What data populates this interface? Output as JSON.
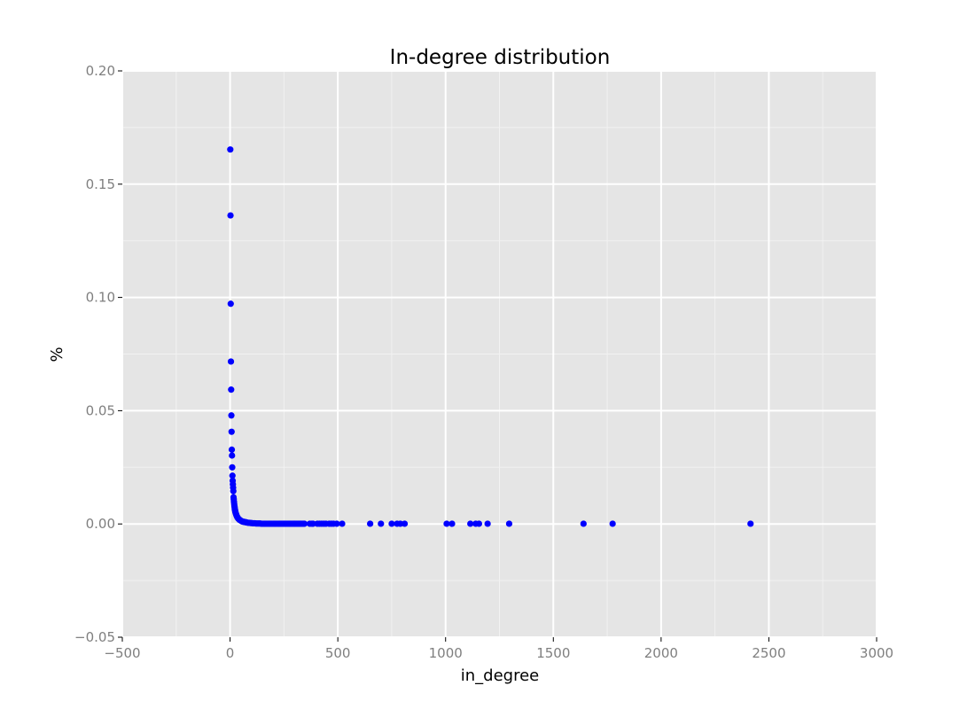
{
  "chart_data": {
    "type": "scatter",
    "title": "In-degree distribution",
    "xlabel": "in_degree",
    "ylabel": "%",
    "xlim": [
      -500,
      3000
    ],
    "ylim": [
      -0.05,
      0.2
    ],
    "x_ticks": [
      -500,
      0,
      500,
      1000,
      1500,
      2000,
      2500,
      3000
    ],
    "x_tick_labels": [
      "−500",
      "0",
      "500",
      "1000",
      "1500",
      "2000",
      "2500",
      "3000"
    ],
    "y_ticks": [
      -0.05,
      0.0,
      0.05,
      0.1,
      0.15,
      0.2
    ],
    "y_tick_labels": [
      "−0.05",
      "0.00",
      "0.05",
      "0.10",
      "0.15",
      "0.20"
    ],
    "grid": true,
    "colors": {
      "panel_background": "#e5e5e5",
      "grid_major": "#ffffff",
      "grid_minor": "#f2f2f2",
      "point": "#0000ff",
      "tick": "#7f7f7f"
    },
    "series": [
      {
        "name": "in_degree",
        "points": [
          [
            1,
            0.1653
          ],
          [
            2,
            0.1362
          ],
          [
            3,
            0.0972
          ],
          [
            4,
            0.0717
          ],
          [
            5,
            0.0593
          ],
          [
            6,
            0.0479
          ],
          [
            7,
            0.0407
          ],
          [
            8,
            0.0328
          ],
          [
            9,
            0.0302
          ],
          [
            10,
            0.025
          ],
          [
            11,
            0.0213
          ],
          [
            12,
            0.0191
          ],
          [
            13,
            0.0175
          ],
          [
            14,
            0.016
          ],
          [
            15,
            0.0145
          ],
          [
            16,
            0.0118
          ],
          [
            17,
            0.0109
          ],
          [
            18,
            0.0098
          ],
          [
            19,
            0.0089
          ],
          [
            20,
            0.0081
          ],
          [
            21,
            0.0074
          ],
          [
            22,
            0.0067
          ],
          [
            23,
            0.0061
          ],
          [
            24,
            0.0056
          ],
          [
            25,
            0.0051
          ],
          [
            27,
            0.0045
          ],
          [
            29,
            0.004
          ],
          [
            31,
            0.0035
          ],
          [
            33,
            0.0031
          ],
          [
            35,
            0.0028
          ],
          [
            38,
            0.0024
          ],
          [
            41,
            0.0021
          ],
          [
            44,
            0.0018
          ],
          [
            48,
            0.0016
          ],
          [
            52,
            0.0013
          ],
          [
            56,
            0.0011
          ],
          [
            60,
            0.001
          ],
          [
            65,
            0.0009
          ],
          [
            70,
            0.0008
          ],
          [
            75,
            0.0007
          ],
          [
            80,
            0.0006
          ],
          [
            85,
            0.0005
          ],
          [
            90,
            0.0005
          ],
          [
            95,
            0.0004
          ],
          [
            100,
            0.0004
          ],
          [
            105,
            0.0003
          ],
          [
            110,
            0.0003
          ],
          [
            115,
            0.0003
          ],
          [
            120,
            0.0002
          ],
          [
            125,
            0.0002
          ],
          [
            130,
            0.0002
          ],
          [
            135,
            0.0002
          ],
          [
            140,
            0.0002
          ],
          [
            145,
            0.0001
          ],
          [
            150,
            0.0001
          ],
          [
            155,
            0.0001
          ],
          [
            160,
            0.0001
          ],
          [
            165,
            0.0001
          ],
          [
            170,
            0.0001
          ],
          [
            175,
            0.0001
          ],
          [
            180,
            0.0001
          ],
          [
            185,
            0.0001
          ],
          [
            190,
            0.0001
          ],
          [
            195,
            0.0001
          ],
          [
            200,
            0.0001
          ],
          [
            205,
            0.0001
          ],
          [
            210,
            0.0001
          ],
          [
            215,
            0.0001
          ],
          [
            220,
            0.0001
          ],
          [
            225,
            0.0001
          ],
          [
            230,
            0.0001
          ],
          [
            235,
            0.0001
          ],
          [
            240,
            0.0001
          ],
          [
            245,
            0.0001
          ],
          [
            250,
            0.0001
          ],
          [
            255,
            0.0001
          ],
          [
            260,
            0.0001
          ],
          [
            265,
            0.0001
          ],
          [
            270,
            0.0001
          ],
          [
            275,
            0.0001
          ],
          [
            280,
            0.0001
          ],
          [
            285,
            0.0001
          ],
          [
            290,
            0.0001
          ],
          [
            295,
            0.0001
          ],
          [
            300,
            0.0001
          ],
          [
            305,
            0.0001
          ],
          [
            310,
            0.0001
          ],
          [
            315,
            0.0001
          ],
          [
            320,
            0.0001
          ],
          [
            325,
            0.0001
          ],
          [
            330,
            0.0001
          ],
          [
            335,
            0.0001
          ],
          [
            340,
            0.0001
          ],
          [
            345,
            0.0001
          ],
          [
            370,
            0.0001
          ],
          [
            380,
            0.0001
          ],
          [
            385,
            0.0001
          ],
          [
            405,
            0.0001
          ],
          [
            415,
            0.0001
          ],
          [
            425,
            0.0001
          ],
          [
            435,
            0.0001
          ],
          [
            445,
            0.0001
          ],
          [
            460,
            0.0001
          ],
          [
            470,
            0.0001
          ],
          [
            480,
            0.0001
          ],
          [
            495,
            0.0001
          ],
          [
            520,
            0.0001
          ],
          [
            650,
            0.0001
          ],
          [
            700,
            0.0001
          ],
          [
            750,
            0.0001
          ],
          [
            775,
            0.0001
          ],
          [
            790,
            0.0001
          ],
          [
            810,
            0.0001
          ],
          [
            1005,
            0.0001
          ],
          [
            1030,
            0.0001
          ],
          [
            1115,
            0.0001
          ],
          [
            1140,
            0.0001
          ],
          [
            1155,
            0.0001
          ],
          [
            1195,
            0.0001
          ],
          [
            1295,
            0.0001
          ],
          [
            1640,
            0.0001
          ],
          [
            1775,
            0.0001
          ],
          [
            2415,
            0.0001
          ]
        ]
      }
    ]
  }
}
